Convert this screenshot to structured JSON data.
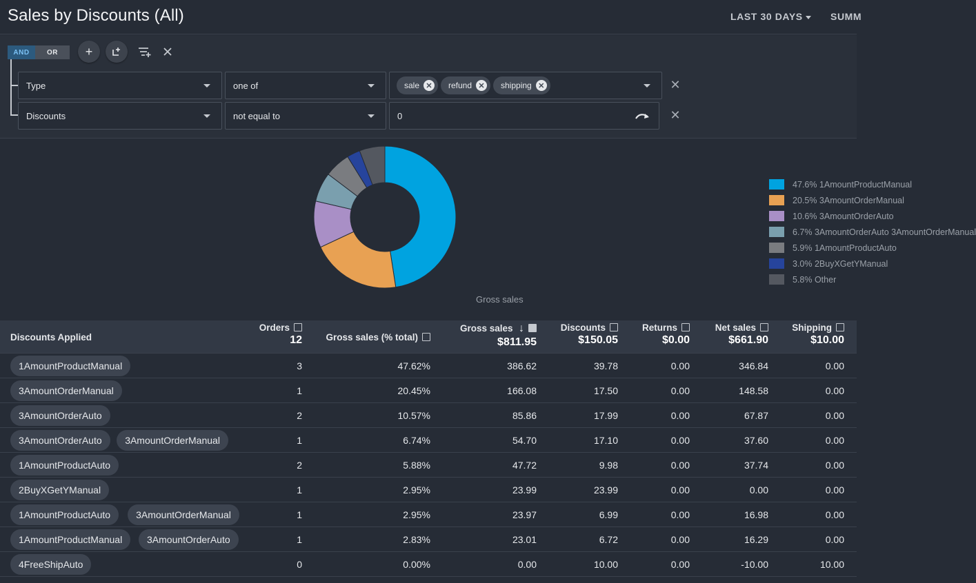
{
  "header": {
    "title": "Sales by Discounts (All)",
    "date_range": "LAST 30 DAYS",
    "summary_tab": "SUMM"
  },
  "filters": {
    "logic": {
      "and": "AND",
      "or": "OR",
      "selected": "AND"
    },
    "rows": [
      {
        "field": "Type",
        "operator": "one of",
        "values": [
          "sale",
          "refund",
          "shipping"
        ]
      },
      {
        "field": "Discounts",
        "operator": "not equal to",
        "value": "0"
      }
    ]
  },
  "chart_data": {
    "type": "pie",
    "xlabel": "Gross sales",
    "labels": [
      "1AmountProductManual",
      "3AmountOrderManual",
      "3AmountOrderAuto",
      "3AmountOrderAuto 3AmountOrderManual",
      "1AmountProductAuto",
      "2BuyXGetYManual",
      "Other"
    ],
    "values": [
      47.6,
      20.5,
      10.6,
      6.7,
      5.9,
      3.0,
      5.8
    ],
    "colors": [
      "#00a3e0",
      "#e8a153",
      "#a98fc6",
      "#7a9fae",
      "#7a7c80",
      "#26449c",
      "#545860"
    ],
    "legend_text": [
      "47.6% 1AmountProductManual",
      "20.5% 3AmountOrderManual",
      "10.6% 3AmountOrderAuto",
      "6.7% 3AmountOrderAuto 3AmountOrderManual",
      "5.9% 1AmountProductAuto",
      "3.0% 2BuyXGetYManual",
      "5.8% Other"
    ],
    "legend_position": "right"
  },
  "table": {
    "group_header": "Discounts Applied",
    "columns": [
      {
        "label": "Orders",
        "total": "12",
        "checked": false,
        "sorted": false
      },
      {
        "label": "Gross sales (% total)",
        "total": "",
        "checked": false,
        "sorted": false
      },
      {
        "label": "Gross sales",
        "total": "$811.95",
        "checked": true,
        "sorted": true
      },
      {
        "label": "Discounts",
        "total": "$150.05",
        "checked": false,
        "sorted": false
      },
      {
        "label": "Returns",
        "total": "$0.00",
        "checked": false,
        "sorted": false
      },
      {
        "label": "Net sales",
        "total": "$661.90",
        "checked": false,
        "sorted": false
      },
      {
        "label": "Shipping",
        "total": "$10.00",
        "checked": false,
        "sorted": false
      }
    ],
    "rows": [
      {
        "discounts": [
          "1AmountProductManual"
        ],
        "values": [
          "3",
          "47.62%",
          "386.62",
          "39.78",
          "0.00",
          "346.84",
          "0.00"
        ]
      },
      {
        "discounts": [
          "3AmountOrderManual"
        ],
        "values": [
          "1",
          "20.45%",
          "166.08",
          "17.50",
          "0.00",
          "148.58",
          "0.00"
        ]
      },
      {
        "discounts": [
          "3AmountOrderAuto"
        ],
        "values": [
          "2",
          "10.57%",
          "85.86",
          "17.99",
          "0.00",
          "67.87",
          "0.00"
        ]
      },
      {
        "discounts": [
          "3AmountOrderAuto",
          "3AmountOrderManual"
        ],
        "values": [
          "1",
          "6.74%",
          "54.70",
          "17.10",
          "0.00",
          "37.60",
          "0.00"
        ]
      },
      {
        "discounts": [
          "1AmountProductAuto"
        ],
        "values": [
          "2",
          "5.88%",
          "47.72",
          "9.98",
          "0.00",
          "37.74",
          "0.00"
        ]
      },
      {
        "discounts": [
          "2BuyXGetYManual"
        ],
        "values": [
          "1",
          "2.95%",
          "23.99",
          "23.99",
          "0.00",
          "0.00",
          "0.00"
        ]
      },
      {
        "discounts": [
          "1AmountProductAuto",
          "3AmountOrderManual"
        ],
        "values": [
          "1",
          "2.95%",
          "23.97",
          "6.99",
          "0.00",
          "16.98",
          "0.00"
        ]
      },
      {
        "discounts": [
          "1AmountProductManual",
          "3AmountOrderAuto"
        ],
        "values": [
          "1",
          "2.83%",
          "23.01",
          "6.72",
          "0.00",
          "16.29",
          "0.00"
        ]
      },
      {
        "discounts": [
          "4FreeShipAuto"
        ],
        "values": [
          "0",
          "0.00%",
          "0.00",
          "10.00",
          "0.00",
          "-10.00",
          "10.00"
        ]
      }
    ]
  }
}
